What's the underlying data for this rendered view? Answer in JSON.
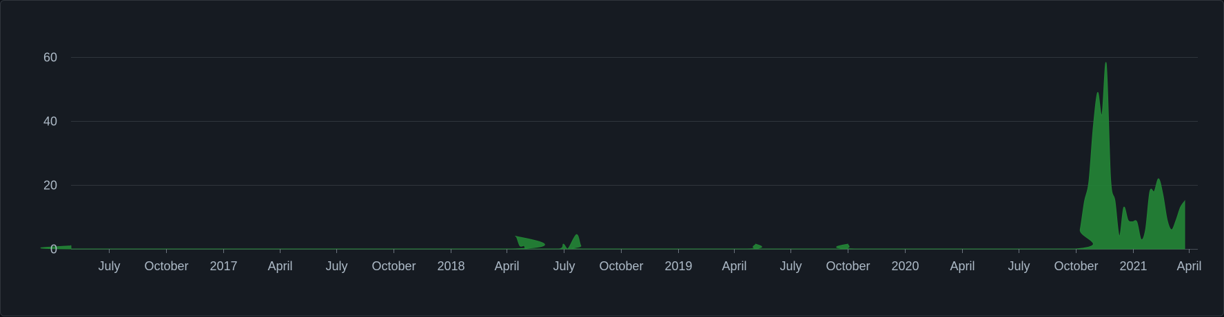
{
  "chart_data": {
    "type": "area",
    "title": "",
    "xlabel": "",
    "ylabel": "",
    "ylim": [
      0,
      70
    ],
    "yticks": [
      0,
      20,
      40,
      60
    ],
    "grid": true,
    "legend": "none",
    "x_range": [
      "2016-05-01",
      "2021-04-15"
    ],
    "x_tick_labels": [
      {
        "date": "2016-07-01",
        "label": "July"
      },
      {
        "date": "2016-10-01",
        "label": "October"
      },
      {
        "date": "2017-01-01",
        "label": "2017"
      },
      {
        "date": "2017-04-01",
        "label": "April"
      },
      {
        "date": "2017-07-01",
        "label": "July"
      },
      {
        "date": "2017-10-01",
        "label": "October"
      },
      {
        "date": "2018-01-01",
        "label": "2018"
      },
      {
        "date": "2018-04-01",
        "label": "April"
      },
      {
        "date": "2018-07-01",
        "label": "July"
      },
      {
        "date": "2018-10-01",
        "label": "October"
      },
      {
        "date": "2019-01-01",
        "label": "2019"
      },
      {
        "date": "2019-04-01",
        "label": "April"
      },
      {
        "date": "2019-07-01",
        "label": "July"
      },
      {
        "date": "2019-10-01",
        "label": "October"
      },
      {
        "date": "2020-01-01",
        "label": "2020"
      },
      {
        "date": "2020-04-01",
        "label": "April"
      },
      {
        "date": "2020-07-01",
        "label": "July"
      },
      {
        "date": "2020-10-01",
        "label": "October"
      },
      {
        "date": "2021-01-01",
        "label": "2021"
      },
      {
        "date": "2021-04-01",
        "label": "April"
      }
    ],
    "series": [
      {
        "color": "#238636",
        "points": [
          [
            "2016-05-01",
            1
          ],
          [
            "2016-05-06",
            0
          ],
          [
            "2018-04-08",
            0
          ],
          [
            "2018-04-15",
            4
          ],
          [
            "2018-04-22",
            1
          ],
          [
            "2018-04-29",
            1
          ],
          [
            "2018-05-06",
            0
          ],
          [
            "2018-06-24",
            0
          ],
          [
            "2018-07-01",
            1.5
          ],
          [
            "2018-07-08",
            0
          ],
          [
            "2018-07-22",
            4.5
          ],
          [
            "2018-07-29",
            1
          ],
          [
            "2018-08-05",
            0
          ],
          [
            "2019-04-22",
            0
          ],
          [
            "2019-05-06",
            1.5
          ],
          [
            "2019-05-13",
            0
          ],
          [
            "2019-09-20",
            0
          ],
          [
            "2019-10-01",
            1.5
          ],
          [
            "2019-10-12",
            0
          ],
          [
            "2020-10-01",
            0
          ],
          [
            "2020-10-08",
            6
          ],
          [
            "2020-10-15",
            15
          ],
          [
            "2020-10-22",
            21
          ],
          [
            "2020-10-29",
            38
          ],
          [
            "2020-11-05",
            49
          ],
          [
            "2020-11-12",
            42
          ],
          [
            "2020-11-19",
            58
          ],
          [
            "2020-11-26",
            22
          ],
          [
            "2020-12-03",
            15
          ],
          [
            "2020-12-10",
            4
          ],
          [
            "2020-12-17",
            13
          ],
          [
            "2020-12-24",
            9
          ],
          [
            "2020-12-31",
            8.5
          ],
          [
            "2021-01-07",
            8.5
          ],
          [
            "2021-01-14",
            3
          ],
          [
            "2021-01-21",
            6
          ],
          [
            "2021-01-28",
            18
          ],
          [
            "2021-02-04",
            18
          ],
          [
            "2021-02-11",
            22
          ],
          [
            "2021-02-18",
            17
          ],
          [
            "2021-02-25",
            9
          ],
          [
            "2021-03-04",
            6
          ],
          [
            "2021-03-11",
            9
          ],
          [
            "2021-03-18",
            13
          ],
          [
            "2021-03-25",
            15
          ]
        ]
      }
    ]
  }
}
